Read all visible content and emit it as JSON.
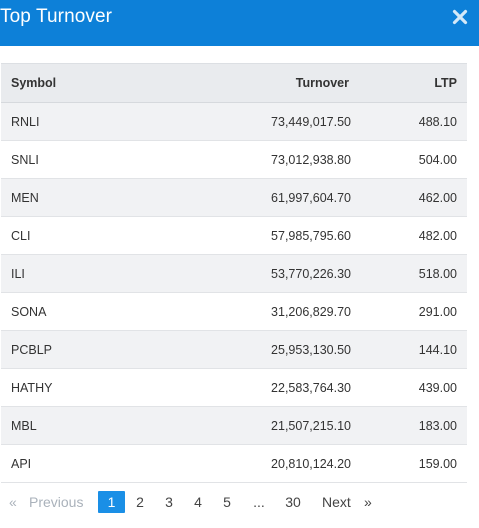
{
  "header": {
    "title": "Top Turnover",
    "close_icon": "close-icon",
    "background_color": "#0d80d8"
  },
  "table": {
    "columns": [
      "Symbol",
      "Turnover",
      "LTP"
    ],
    "rows": [
      {
        "symbol": "RNLI",
        "turnover": "73,449,017.50",
        "ltp": "488.10"
      },
      {
        "symbol": "SNLI",
        "turnover": "73,012,938.80",
        "ltp": "504.00"
      },
      {
        "symbol": "MEN",
        "turnover": "61,997,604.70",
        "ltp": "462.00"
      },
      {
        "symbol": "CLI",
        "turnover": "57,985,795.60",
        "ltp": "482.00"
      },
      {
        "symbol": "ILI",
        "turnover": "53,770,226.30",
        "ltp": "518.00"
      },
      {
        "symbol": "SONA",
        "turnover": "31,206,829.70",
        "ltp": "291.00"
      },
      {
        "symbol": "PCBLP",
        "turnover": "25,953,130.50",
        "ltp": "144.10"
      },
      {
        "symbol": "HATHY",
        "turnover": "22,583,764.30",
        "ltp": "439.00"
      },
      {
        "symbol": "MBL",
        "turnover": "21,507,215.10",
        "ltp": "183.00"
      },
      {
        "symbol": "API",
        "turnover": "20,810,124.20",
        "ltp": "159.00"
      }
    ]
  },
  "pagination": {
    "prev_arrow": "«",
    "prev_label": "Previous",
    "pages": [
      "1",
      "2",
      "3",
      "4",
      "5"
    ],
    "ellipsis": "...",
    "last_page": "30",
    "next_label": "Next",
    "next_arrow": "»",
    "active_page": "1",
    "active_color": "#1a8fe6"
  }
}
